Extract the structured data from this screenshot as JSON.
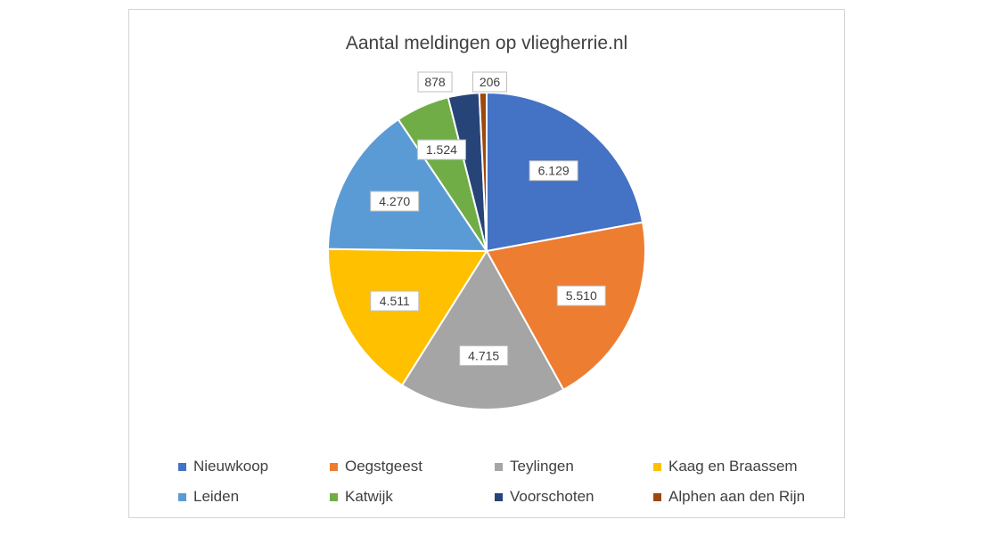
{
  "chart_data": {
    "type": "pie",
    "title": "Aantal meldingen op vliegherrie.nl",
    "categories": [
      "Nieuwkoop",
      "Oegstgeest",
      "Teylingen",
      "Kaag en Braassem",
      "Leiden",
      "Katwijk",
      "Voorschoten",
      "Alphen aan den Rijn"
    ],
    "values": [
      6129,
      5510,
      4715,
      4511,
      4270,
      1524,
      878,
      206
    ],
    "labels": [
      "6.129",
      "5.510",
      "4.715",
      "4.511",
      "4.270",
      "1.524",
      "878",
      "206"
    ],
    "colors": [
      "#4472C4",
      "#ED7D31",
      "#A5A5A5",
      "#FFC000",
      "#5B9BD5",
      "#70AD47",
      "#264478",
      "#9E480E"
    ],
    "legend_position": "bottom",
    "start_angle": "12 o'clock, clockwise"
  }
}
